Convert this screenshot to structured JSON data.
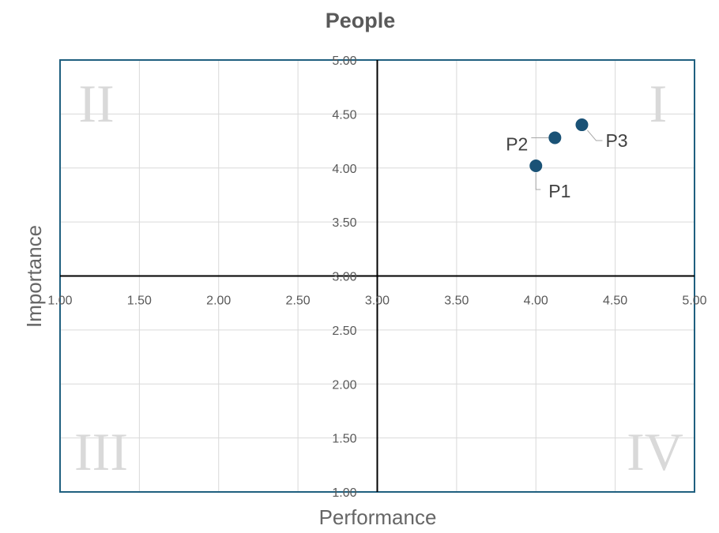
{
  "chart_data": {
    "type": "scatter",
    "title": "People",
    "xlabel": "Performance",
    "ylabel": "Importance",
    "xlim": [
      1,
      5
    ],
    "ylim": [
      1,
      5
    ],
    "x_ticks": [
      "1.00",
      "1.50",
      "2.00",
      "2.50",
      "3.00",
      "3.50",
      "4.00",
      "4.50",
      "5.00"
    ],
    "y_ticks": [
      "1.00",
      "1.50",
      "2.00",
      "2.50",
      "3.00",
      "3.50",
      "4.00",
      "4.50",
      "5.00"
    ],
    "axis_crossing": {
      "x": 3.0,
      "y": 3.0
    },
    "grid": true,
    "quadrant_labels": [
      "I",
      "II",
      "III",
      "IV"
    ],
    "series": [
      {
        "points": [
          {
            "label": "P1",
            "x": 4.0,
            "y": 4.02
          },
          {
            "label": "P2",
            "x": 4.12,
            "y": 4.28
          },
          {
            "label": "P3",
            "x": 4.29,
            "y": 4.4
          }
        ]
      }
    ],
    "colors": {
      "marker": "#1a5276",
      "frame": "#1f5f7f",
      "grid": "#d9d9d9",
      "axis": "#000000",
      "quadrant_text": "#d9d9d9"
    }
  }
}
